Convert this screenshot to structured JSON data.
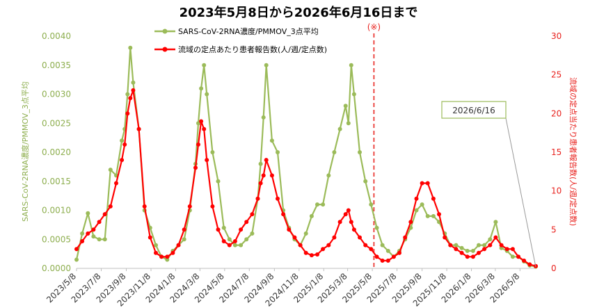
{
  "chart_data": {
    "type": "line",
    "title": "2023年5月8日から2026年6月16日まで",
    "ylabel_left": "SARS-CoV-2RNA濃度/PMMOV_3点平均",
    "ylabel_right": "流域の定点当たり患者報告数(人/週/定点数)",
    "ylim_left": [
      0,
      0.004
    ],
    "ylim_right": [
      0,
      30
    ],
    "left_ticks": [
      "0.0000",
      "0.0005",
      "0.0010",
      "0.0015",
      "0.0020",
      "0.0025",
      "0.0030",
      "0.0035",
      "0.0040"
    ],
    "right_ticks": [
      "0",
      "5",
      "10",
      "15",
      "20",
      "25",
      "30"
    ],
    "x_ticks": [
      "2023/5/8",
      "2023/7/8",
      "2023/9/8",
      "2023/11/8",
      "2024/1/8",
      "2024/3/8",
      "2024/5/8",
      "2024/7/8",
      "2024/9/8",
      "2024/11/8",
      "2025/1/8",
      "2025/3/8",
      "2025/5/8",
      "2025/7/8",
      "2025/9/8",
      "2025/11/8",
      "2026/1/8",
      "2026/3/8",
      "2026/5/8"
    ],
    "x_range": [
      "2023/5/8",
      "2026/6/16"
    ],
    "grid": false,
    "legend_placement": "top-center",
    "annotation_marker": "(※)",
    "annotation_date": "2025/5/12",
    "callout_label": "2026/6/16",
    "colors": {
      "rna": "#9bbb59",
      "patients": "#ff0000",
      "left_axis": "#8dae4e",
      "right_axis": "#e8211d"
    },
    "series": [
      {
        "name": "SARS-CoV-2RNA濃度/PMMOV_3点平均",
        "axis": "left",
        "x": [
          "2023/5/8",
          "2023/5/22",
          "2023/6/5",
          "2023/6/19",
          "2023/7/3",
          "2023/7/17",
          "2023/7/31",
          "2023/8/14",
          "2023/8/28",
          "2023/9/4",
          "2023/9/11",
          "2023/9/18",
          "2023/9/25",
          "2023/10/9",
          "2023/10/23",
          "2023/11/6",
          "2023/11/20",
          "2023/12/4",
          "2023/12/18",
          "2024/1/1",
          "2024/1/15",
          "2024/1/29",
          "2024/2/12",
          "2024/2/26",
          "2024/3/4",
          "2024/3/11",
          "2024/3/18",
          "2024/3/25",
          "2024/4/8",
          "2024/4/22",
          "2024/5/6",
          "2024/5/20",
          "2024/6/3",
          "2024/6/17",
          "2024/7/1",
          "2024/7/15",
          "2024/7/29",
          "2024/8/5",
          "2024/8/12",
          "2024/8/19",
          "2024/9/2",
          "2024/9/16",
          "2024/9/30",
          "2024/10/14",
          "2024/10/28",
          "2024/11/11",
          "2024/11/25",
          "2024/12/9",
          "2024/12/23",
          "2025/1/6",
          "2025/1/20",
          "2025/2/3",
          "2025/2/17",
          "2025/3/3",
          "2025/3/10",
          "2025/3/17",
          "2025/3/24",
          "2025/4/7",
          "2025/4/21",
          "2025/5/5",
          "2025/5/19",
          "2025/6/2",
          "2025/6/16",
          "2025/6/30",
          "2025/7/14",
          "2025/7/28",
          "2025/8/11",
          "2025/8/25",
          "2025/9/8",
          "2025/9/22",
          "2025/10/6",
          "2025/10/20",
          "2025/11/3",
          "2025/11/17",
          "2025/12/1",
          "2025/12/15",
          "2025/12/29",
          "2026/1/12",
          "2026/1/26",
          "2026/2/9",
          "2026/2/23",
          "2026/3/9",
          "2026/3/23",
          "2026/4/6",
          "2026/4/20",
          "2026/5/4",
          "2026/5/18",
          "2026/6/1",
          "2026/6/16"
        ],
        "values": [
          0.00015,
          0.0006,
          0.00095,
          0.00055,
          0.0005,
          0.0005,
          0.0017,
          0.0016,
          0.0022,
          0.0024,
          0.003,
          0.0038,
          0.0032,
          0.0024,
          0.001,
          0.0007,
          0.0004,
          0.0002,
          0.00015,
          0.0003,
          0.0004,
          0.0005,
          0.001,
          0.0018,
          0.0025,
          0.0031,
          0.0035,
          0.003,
          0.002,
          0.0015,
          0.0007,
          0.0005,
          0.0004,
          0.0004,
          0.0005,
          0.0006,
          0.0012,
          0.0018,
          0.0026,
          0.0035,
          0.0022,
          0.002,
          0.001,
          0.0007,
          0.0005,
          0.0004,
          0.0006,
          0.0009,
          0.0011,
          0.0011,
          0.0016,
          0.002,
          0.0024,
          0.0028,
          0.0025,
          0.0035,
          0.003,
          0.002,
          0.0015,
          0.0011,
          0.0007,
          0.0004,
          0.0003,
          0.0002,
          0.0003,
          0.0005,
          0.0007,
          0.001,
          0.0011,
          0.0009,
          0.0009,
          0.0008,
          0.0006,
          0.0004,
          0.0004,
          0.00035,
          0.0003,
          0.0003,
          0.0004,
          0.0004,
          0.0005,
          0.0008,
          0.00035,
          0.0003,
          0.0002,
          0.0002,
          0.00012,
          5e-05,
          3e-05
        ]
      },
      {
        "name": "流域の定点あたり患者報告数(人/週/定点数)",
        "axis": "right",
        "x": [
          "2023/5/8",
          "2023/5/22",
          "2023/6/5",
          "2023/6/19",
          "2023/7/3",
          "2023/7/17",
          "2023/7/31",
          "2023/8/14",
          "2023/8/28",
          "2023/9/4",
          "2023/9/11",
          "2023/9/18",
          "2023/9/25",
          "2023/10/9",
          "2023/10/23",
          "2023/11/6",
          "2023/11/20",
          "2023/12/4",
          "2023/12/18",
          "2024/1/1",
          "2024/1/15",
          "2024/1/29",
          "2024/2/12",
          "2024/2/26",
          "2024/3/4",
          "2024/3/11",
          "2024/3/18",
          "2024/3/25",
          "2024/4/8",
          "2024/4/22",
          "2024/5/6",
          "2024/5/20",
          "2024/6/3",
          "2024/6/17",
          "2024/7/1",
          "2024/7/15",
          "2024/7/29",
          "2024/8/5",
          "2024/8/12",
          "2024/8/19",
          "2024/9/2",
          "2024/9/16",
          "2024/9/30",
          "2024/10/14",
          "2024/10/28",
          "2024/11/11",
          "2024/11/25",
          "2024/12/9",
          "2024/12/23",
          "2025/1/6",
          "2025/1/20",
          "2025/2/3",
          "2025/2/17",
          "2025/3/3",
          "2025/3/10",
          "2025/3/17",
          "2025/3/24",
          "2025/4/7",
          "2025/4/21",
          "2025/5/5",
          "2025/5/19",
          "2025/6/2",
          "2025/6/16",
          "2025/6/30",
          "2025/7/14",
          "2025/7/28",
          "2025/8/11",
          "2025/8/25",
          "2025/9/8",
          "2025/9/22",
          "2025/10/6",
          "2025/10/20",
          "2025/11/3",
          "2025/11/17",
          "2025/12/1",
          "2025/12/15",
          "2025/12/29",
          "2026/1/12",
          "2026/1/26",
          "2026/2/9",
          "2026/2/23",
          "2026/3/9",
          "2026/3/23",
          "2026/4/6",
          "2026/4/20",
          "2026/5/4",
          "2026/5/18",
          "2026/6/1",
          "2026/6/16"
        ],
        "values": [
          2.5,
          3.5,
          4.5,
          5,
          6,
          7,
          8,
          11,
          14,
          16,
          20,
          22,
          23,
          18,
          8,
          4,
          2,
          1.5,
          1.5,
          2,
          3,
          5,
          8,
          13,
          16,
          19,
          18,
          14,
          8,
          5,
          3.5,
          3,
          3.5,
          5,
          6,
          7,
          9,
          11,
          12,
          14,
          12,
          9,
          7,
          5,
          4,
          3,
          2,
          1.7,
          1.8,
          2.5,
          3,
          4,
          6,
          7,
          7.5,
          6,
          5,
          4,
          3,
          2.5,
          1.5,
          1,
          1,
          1.5,
          2,
          4,
          6,
          9,
          11,
          11,
          9,
          7,
          4,
          3,
          2.5,
          2,
          1.5,
          1.5,
          2,
          2.5,
          3,
          4,
          3,
          2.5,
          2.5,
          1.5,
          1,
          0.5,
          0.3
        ]
      }
    ]
  }
}
